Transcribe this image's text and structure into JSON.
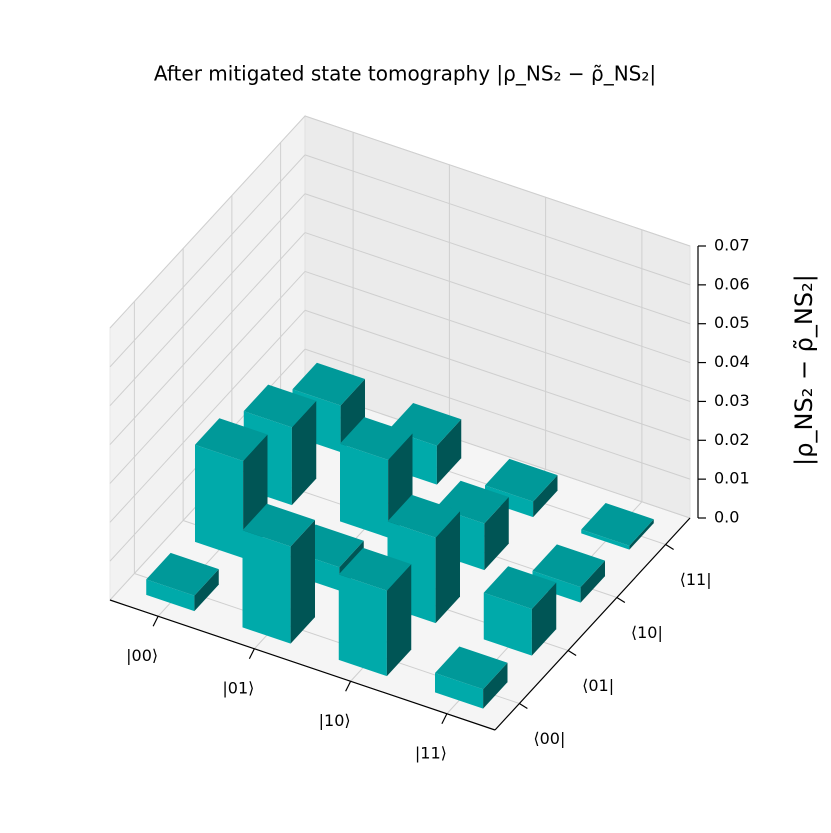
{
  "chart_data": {
    "type": "bar3d",
    "title": "After mitigated state tomography |ρ_NS₂ − ρ̃_NS₂|",
    "zlabel": "|ρ_NS₂ − ρ̃_NS₂|",
    "x_categories": [
      "|00⟩",
      "|01⟩",
      "|10⟩",
      "|11⟩"
    ],
    "y_categories": [
      "⟨00|",
      "⟨01|",
      "⟨10|",
      "⟨11|"
    ],
    "values": [
      [
        0.004,
        0.025,
        0.022,
        0.005
      ],
      [
        0.025,
        0.006,
        0.022,
        0.012
      ],
      [
        0.02,
        0.02,
        0.012,
        0.004
      ],
      [
        0.012,
        0.01,
        0.004,
        0.001
      ]
    ],
    "color": "#00aaaa",
    "zlim": [
      0,
      0.07
    ],
    "zticks": [
      {
        "value": 0,
        "label": "0.0"
      },
      0.01,
      0.02,
      0.03,
      0.04,
      0.05,
      0.06,
      0.07
    ],
    "grid": true
  }
}
